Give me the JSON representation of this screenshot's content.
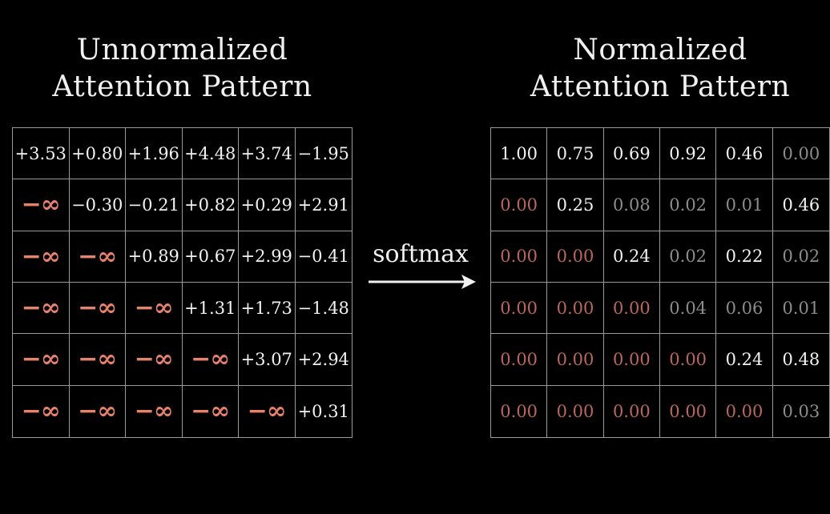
{
  "left_title": {
    "line1": "Unnormalized",
    "line2": "Attention Pattern"
  },
  "right_title": {
    "line1": "Normalized",
    "line2": "Attention Pattern"
  },
  "softmax_label": "softmax",
  "colors": {
    "background": "#000000",
    "text": "#f2f2f2",
    "neg_infinity": "#e8826b",
    "zero_value": "#b9685a",
    "dim_value": "#8c8c8c",
    "grid_line": "#9a9a9a"
  },
  "unnormalized": [
    [
      "+3.53",
      "+0.80",
      "+1.96",
      "+4.48",
      "+3.74",
      "−1.95"
    ],
    [
      "−∞",
      "−0.30",
      "−0.21",
      "+0.82",
      "+0.29",
      "+2.91"
    ],
    [
      "−∞",
      "−∞",
      "+0.89",
      "+0.67",
      "+2.99",
      "−0.41"
    ],
    [
      "−∞",
      "−∞",
      "−∞",
      "+1.31",
      "+1.73",
      "−1.48"
    ],
    [
      "−∞",
      "−∞",
      "−∞",
      "−∞",
      "+3.07",
      "+2.94"
    ],
    [
      "−∞",
      "−∞",
      "−∞",
      "−∞",
      "−∞",
      "+0.31"
    ]
  ],
  "normalized": [
    [
      "1.00",
      "0.75",
      "0.69",
      "0.92",
      "0.46",
      "0.00"
    ],
    [
      "0.00",
      "0.25",
      "0.08",
      "0.02",
      "0.01",
      "0.46"
    ],
    [
      "0.00",
      "0.00",
      "0.24",
      "0.02",
      "0.22",
      "0.02"
    ],
    [
      "0.00",
      "0.00",
      "0.00",
      "0.04",
      "0.06",
      "0.01"
    ],
    [
      "0.00",
      "0.00",
      "0.00",
      "0.00",
      "0.24",
      "0.48"
    ],
    [
      "0.00",
      "0.00",
      "0.00",
      "0.00",
      "0.00",
      "0.03"
    ]
  ]
}
